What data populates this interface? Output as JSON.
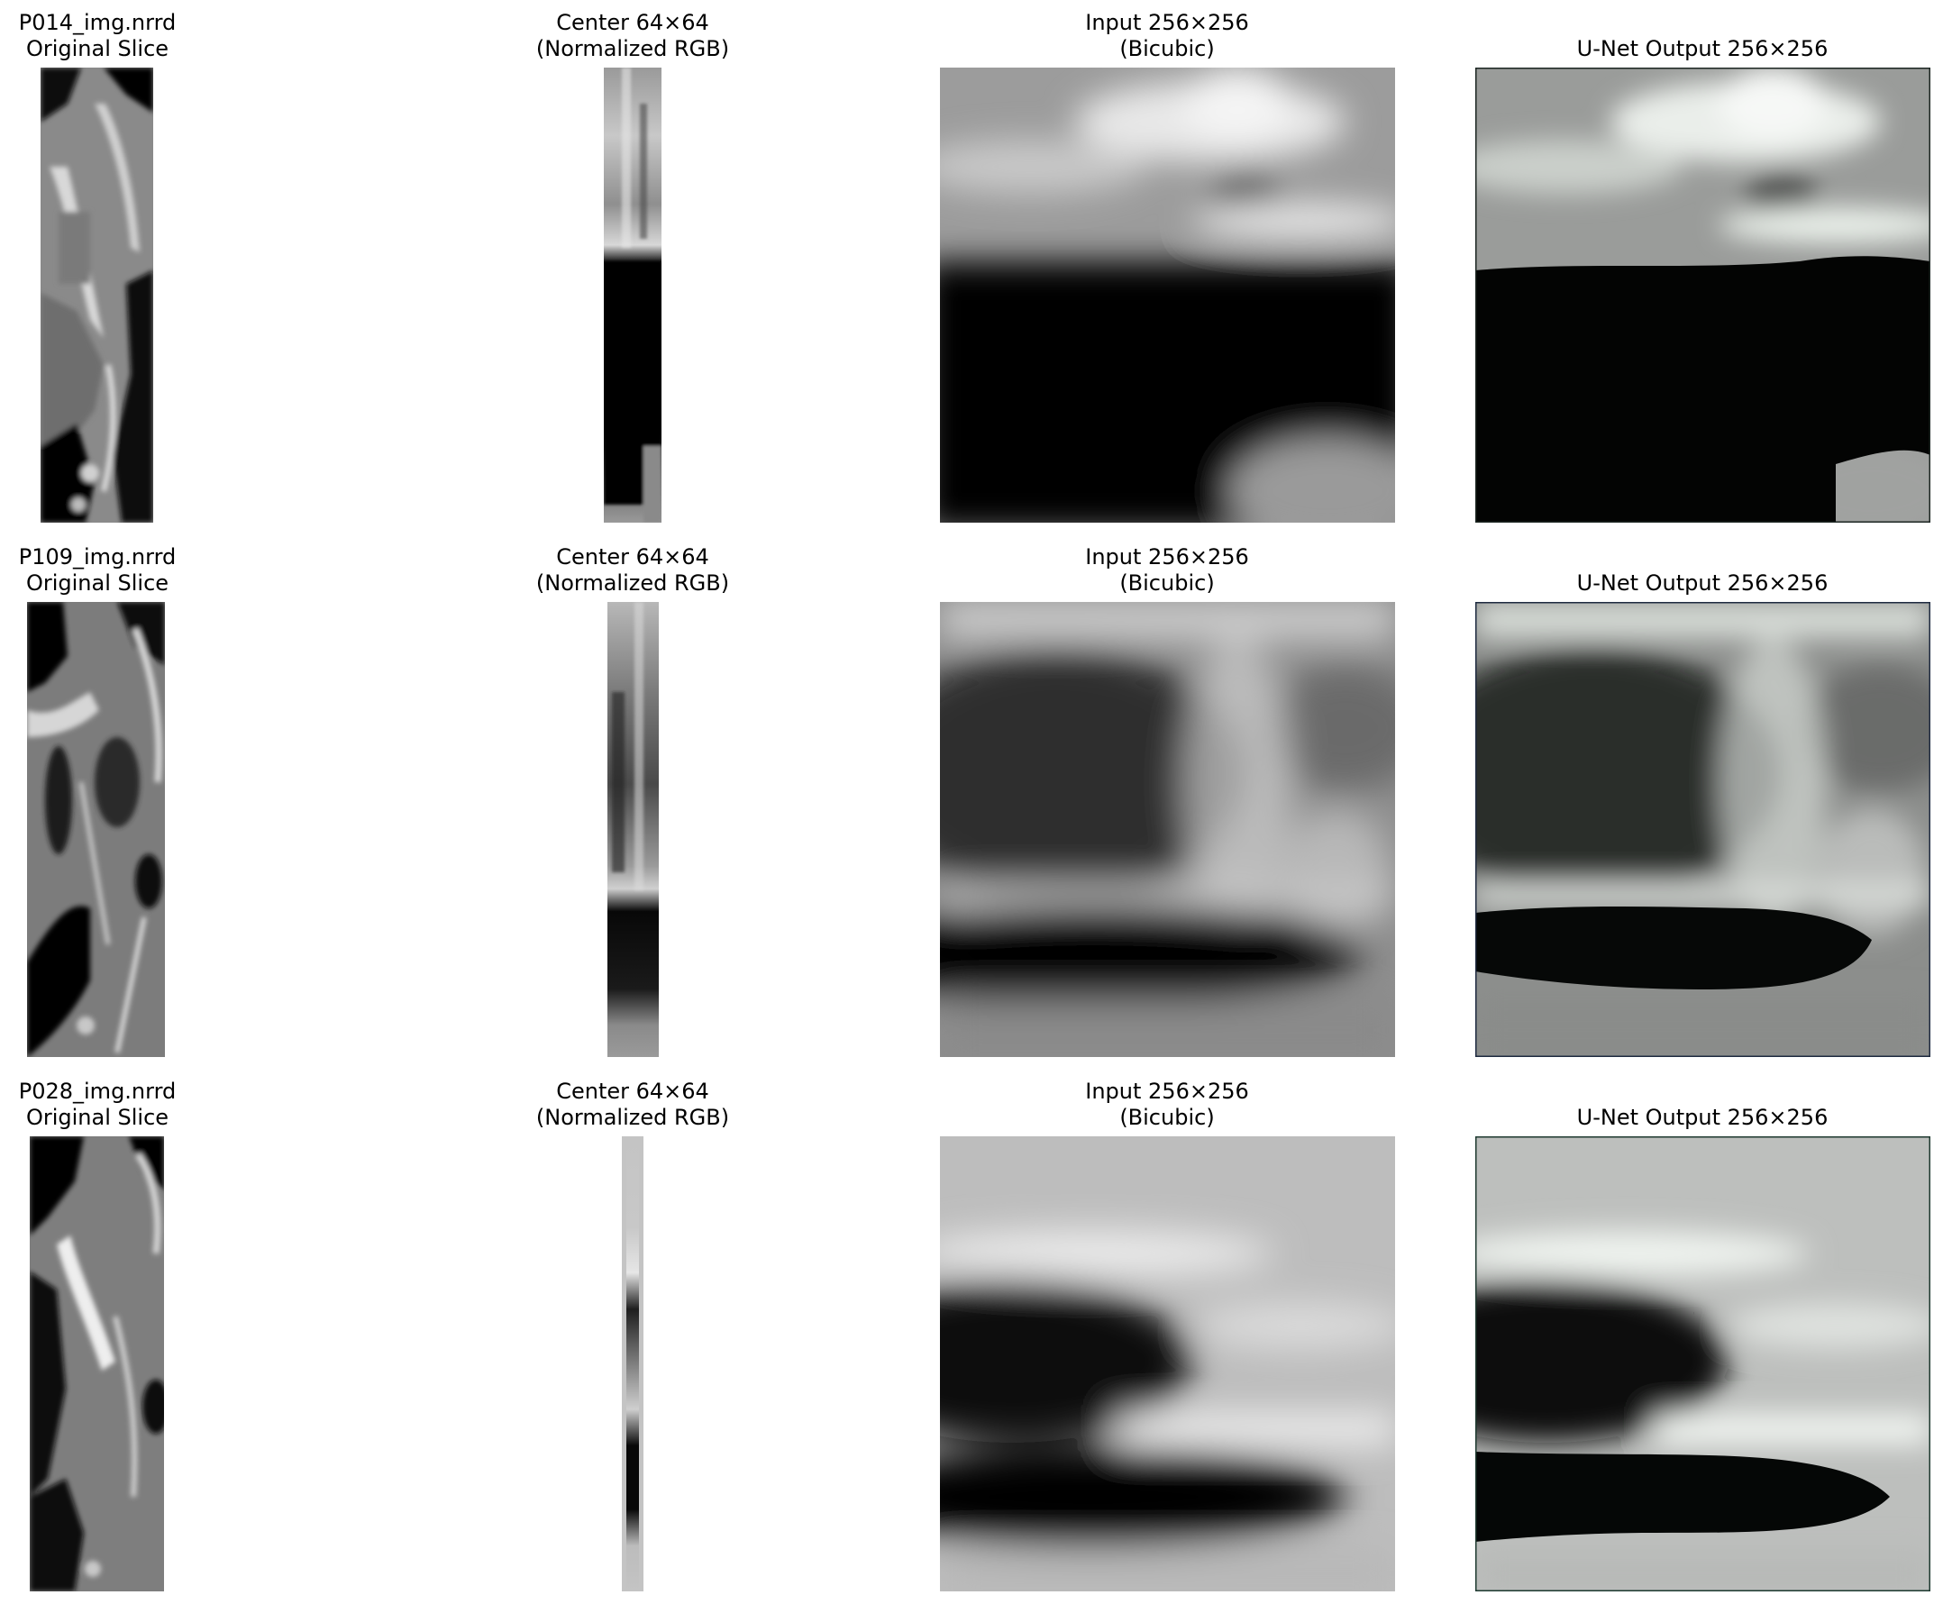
{
  "figure": {
    "rows": [
      {
        "titles": [
          [
            "P014_img.nrrd",
            "Original Slice"
          ],
          [
            "Center 64×64",
            "(Normalized RGB)"
          ],
          [
            "Input 256×256",
            "(Bicubic)"
          ],
          [
            "U-Net Output 256×256"
          ]
        ]
      },
      {
        "titles": [
          [
            "P109_img.nrrd",
            "Original Slice"
          ],
          [
            "Center 64×64",
            "(Normalized RGB)"
          ],
          [
            "Input 256×256",
            "(Bicubic)"
          ],
          [
            "U-Net Output 256×256"
          ]
        ]
      },
      {
        "titles": [
          [
            "P028_img.nrrd",
            "Original Slice"
          ],
          [
            "Center 64×64",
            "(Normalized RGB)"
          ],
          [
            "Input 256×256",
            "(Bicubic)"
          ],
          [
            "U-Net Output 256×256"
          ]
        ]
      }
    ]
  }
}
